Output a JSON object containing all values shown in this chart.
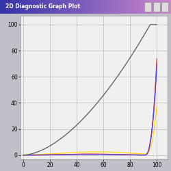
{
  "title": "2D Diagnostic Graph Plot",
  "title_bg_left": "#3333aa",
  "title_bg_right": "#cc88cc",
  "title_fg": "#ffffff",
  "xlim": [
    -2,
    108
  ],
  "ylim": [
    -3,
    107
  ],
  "xticks": [
    0,
    20,
    40,
    60,
    80,
    100
  ],
  "yticks": [
    0,
    20,
    40,
    60,
    80,
    100
  ],
  "grid_color": "#bbbbbb",
  "plot_bg": "#f0f0f0",
  "outer_bg": "#c0c0c8",
  "k_color": "#666666",
  "c_color": "#4444ff",
  "m_color": "#ff44aa",
  "y_color": "#ffdd00",
  "r_color": "#ff4400",
  "k_linewidth": 1.0,
  "cmy_linewidth": 0.9,
  "num_points": 500
}
